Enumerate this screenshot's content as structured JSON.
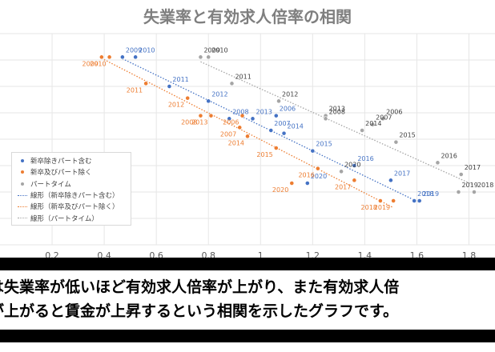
{
  "chart_data": {
    "type": "scatter",
    "title": "失業率と有効求人倍率の相関",
    "xlabel": "",
    "ylabel": "",
    "xlim": [
      0,
      1.9
    ],
    "x_ticks": [
      "0.2",
      "0.4",
      "0.6",
      "0.8",
      "1",
      "1.2",
      "1.4",
      "1.6",
      "1.8"
    ],
    "grid": true,
    "legend_position": "left",
    "series": [
      {
        "name": "新卒除きパート含む",
        "color": "#4472c4",
        "trendline_name": "線形（新卒除きパート含む）",
        "points": [
          {
            "label": "2009",
            "x": 0.47,
            "y": 4.2
          },
          {
            "label": "2010",
            "x": 0.52,
            "y": 4.2
          },
          {
            "label": "2011",
            "x": 0.65,
            "y": 3.7
          },
          {
            "label": "2012",
            "x": 0.8,
            "y": 3.45
          },
          {
            "label": "2008",
            "x": 0.88,
            "y": 3.15
          },
          {
            "label": "2013",
            "x": 0.97,
            "y": 3.15
          },
          {
            "label": "2006",
            "x": 1.06,
            "y": 3.2
          },
          {
            "label": "2007",
            "x": 1.04,
            "y": 2.95
          },
          {
            "label": "2014",
            "x": 1.09,
            "y": 2.9
          },
          {
            "label": "2015",
            "x": 1.2,
            "y": 2.6
          },
          {
            "label": "2016",
            "x": 1.36,
            "y": 2.35
          },
          {
            "label": "2017",
            "x": 1.5,
            "y": 2.1
          },
          {
            "label": "2020",
            "x": 1.18,
            "y": 2.05
          },
          {
            "label": "2019",
            "x": 1.61,
            "y": 1.75
          },
          {
            "label": "2018",
            "x": 1.59,
            "y": 1.75
          }
        ]
      },
      {
        "name": "新卒及びパート除く",
        "color": "#ed7d31",
        "trendline_name": "線形（新卒及びパート除く）",
        "points": [
          {
            "label": "2009",
            "x": 0.39,
            "y": 4.2
          },
          {
            "label": "2010",
            "x": 0.42,
            "y": 4.2
          },
          {
            "label": "2011",
            "x": 0.56,
            "y": 3.75
          },
          {
            "label": "2012",
            "x": 0.72,
            "y": 3.5
          },
          {
            "label": "2008",
            "x": 0.77,
            "y": 3.2
          },
          {
            "label": "2013",
            "x": 0.81,
            "y": 3.2
          },
          {
            "label": "2006",
            "x": 0.93,
            "y": 3.2
          },
          {
            "label": "2007",
            "x": 0.92,
            "y": 3.0
          },
          {
            "label": "2014",
            "x": 0.95,
            "y": 2.85
          },
          {
            "label": "2015",
            "x": 1.06,
            "y": 2.65
          },
          {
            "label": "2016",
            "x": 1.22,
            "y": 2.3
          },
          {
            "label": "2017",
            "x": 1.36,
            "y": 2.1
          },
          {
            "label": "2020",
            "x": 1.12,
            "y": 2.05
          },
          {
            "label": "2018",
            "x": 1.46,
            "y": 1.75
          },
          {
            "label": "2019",
            "x": 1.51,
            "y": 1.75
          }
        ]
      },
      {
        "name": "パートタイム",
        "color": "#a5a5a5",
        "trendline_name": "線形（パートタイム）",
        "points": [
          {
            "label": "2009",
            "x": 0.77,
            "y": 4.2
          },
          {
            "label": "2010",
            "x": 0.8,
            "y": 4.2
          },
          {
            "label": "2011",
            "x": 0.89,
            "y": 3.75
          },
          {
            "label": "2012",
            "x": 1.07,
            "y": 3.45
          },
          {
            "label": "2013",
            "x": 1.25,
            "y": 3.2
          },
          {
            "label": "2006",
            "x": 1.47,
            "y": 3.15
          },
          {
            "label": "2007",
            "x": 1.43,
            "y": 3.05
          },
          {
            "label": "2014",
            "x": 1.39,
            "y": 2.95
          },
          {
            "label": "2008",
            "x": 1.25,
            "y": 3.15
          },
          {
            "label": "2015",
            "x": 1.52,
            "y": 2.75
          },
          {
            "label": "2020",
            "x": 1.31,
            "y": 2.25
          },
          {
            "label": "2016",
            "x": 1.68,
            "y": 2.4
          },
          {
            "label": "2017",
            "x": 1.77,
            "y": 2.2
          },
          {
            "label": "2019",
            "x": 1.76,
            "y": 1.9
          },
          {
            "label": "2018",
            "x": 1.82,
            "y": 1.9
          }
        ]
      }
    ]
  },
  "caption": {
    "line1": "は失業率が低いほど有効求人倍率が上がり、また有効求人倍",
    "line2": "が上がると賃金が上昇するという相関を示したグラフです。"
  }
}
